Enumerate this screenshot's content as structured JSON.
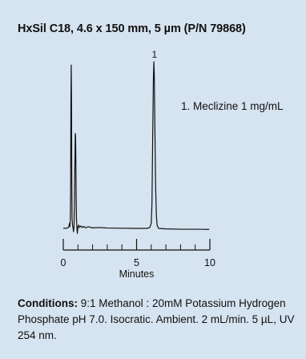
{
  "chart_data": {
    "type": "line",
    "title": "HxSil C18, 4.6 x 150 mm, 5 µm (P/N 79868)",
    "xlabel": "Minutes",
    "ylabel": "",
    "xlim": [
      0,
      10
    ],
    "ylim": [
      0,
      100
    ],
    "x_ticks": [
      0,
      5,
      10
    ],
    "x_ticks_minor": [
      1,
      2,
      3,
      4,
      6,
      7,
      8,
      9
    ],
    "grid": false,
    "legend_entries": [
      "1. Meclizine 1 mg/mL"
    ],
    "peaks": [
      {
        "label": "1",
        "x": 6.2
      }
    ],
    "series": [
      {
        "points": [
          [
            0.0,
            0
          ],
          [
            0.3,
            0.2
          ],
          [
            0.38,
            1
          ],
          [
            0.42,
            3
          ],
          [
            0.45,
            1
          ],
          [
            0.48,
            5
          ],
          [
            0.5,
            20
          ],
          [
            0.52,
            75
          ],
          [
            0.54,
            98
          ],
          [
            0.56,
            80
          ],
          [
            0.58,
            30
          ],
          [
            0.6,
            6
          ],
          [
            0.63,
            2
          ],
          [
            0.67,
            0
          ],
          [
            0.7,
            -2
          ],
          [
            0.73,
            1
          ],
          [
            0.76,
            12
          ],
          [
            0.79,
            38
          ],
          [
            0.82,
            57
          ],
          [
            0.84,
            55
          ],
          [
            0.86,
            38
          ],
          [
            0.88,
            18
          ],
          [
            0.9,
            6
          ],
          [
            0.93,
            0
          ],
          [
            0.96,
            -3
          ],
          [
            1.0,
            1
          ],
          [
            1.05,
            2
          ],
          [
            1.1,
            0.5
          ],
          [
            1.2,
            1.5
          ],
          [
            1.3,
            0.5
          ],
          [
            1.4,
            1.2
          ],
          [
            1.5,
            0.3
          ],
          [
            1.7,
            1
          ],
          [
            2.0,
            0.3
          ],
          [
            2.5,
            0.5
          ],
          [
            3.0,
            0.2
          ],
          [
            4.0,
            0.1
          ],
          [
            5.0,
            0
          ],
          [
            5.7,
            0
          ],
          [
            5.9,
            0.5
          ],
          [
            6.0,
            3
          ],
          [
            6.05,
            15
          ],
          [
            6.1,
            55
          ],
          [
            6.15,
            92
          ],
          [
            6.18,
            100
          ],
          [
            6.21,
            92
          ],
          [
            6.25,
            60
          ],
          [
            6.3,
            25
          ],
          [
            6.35,
            8
          ],
          [
            6.4,
            2
          ],
          [
            6.5,
            0
          ],
          [
            7.0,
            -0.3
          ],
          [
            8.0,
            -0.5
          ],
          [
            9.0,
            -0.5
          ],
          [
            9.95,
            -0.6
          ]
        ]
      }
    ]
  },
  "legend": {
    "text": "1. Meclizine 1 mg/mL"
  },
  "conditions": {
    "label": "Conditions:",
    "text": " 9:1 Methanol : 20mM Potassium Hydrogen Phosphate pH 7.0. Isocratic. Ambient. 2 mL/min. 5 µL, UV 254 nm."
  }
}
